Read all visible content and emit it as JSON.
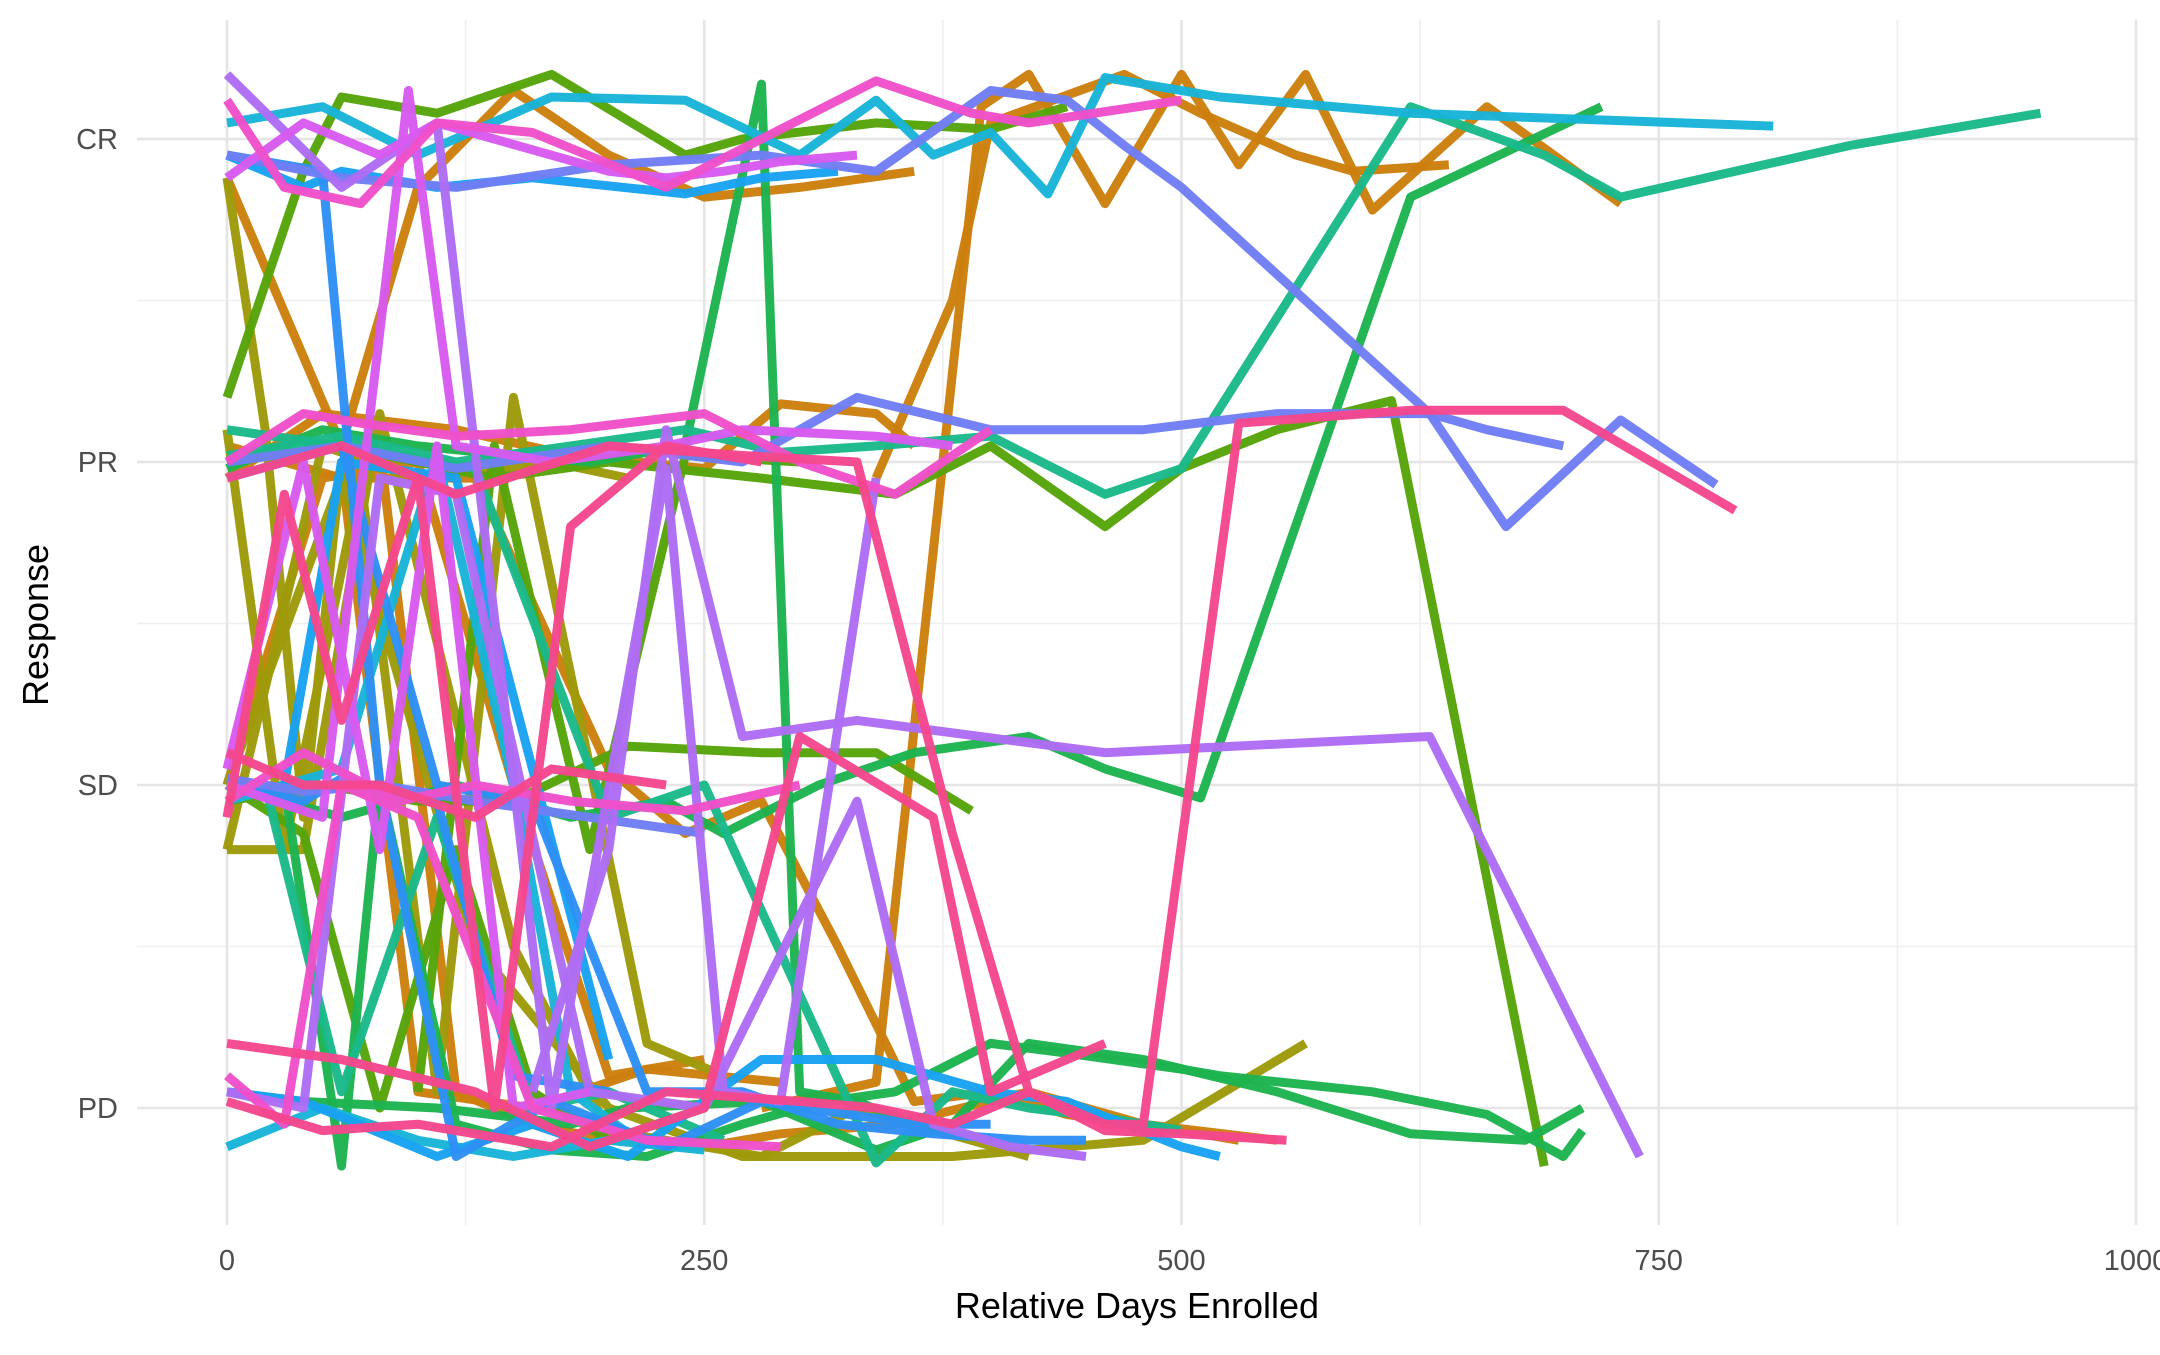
{
  "chart_data": {
    "type": "line",
    "title": "",
    "xlabel": "Relative Days Enrolled",
    "ylabel": "Response",
    "xlim": [
      -15,
      1000
    ],
    "x_ticks": [
      0,
      250,
      500,
      750,
      1000
    ],
    "x_tick_labels": [
      "0",
      "250",
      "500",
      "750",
      "1000"
    ],
    "y_categories": [
      "PD",
      "SD",
      "PR",
      "CR"
    ],
    "ylim": [
      0.6,
      4.3
    ],
    "grid": true,
    "legend": "none",
    "series": [
      {
        "color": "#cc7f0d",
        "x": [
          280,
          340,
          395,
          420,
          460,
          500,
          530,
          565,
          600,
          660,
          730
        ],
        "y": [
          1,
          1.08,
          4.1,
          4.2,
          3.8,
          4.2,
          3.92,
          4.2,
          3.78,
          4.1,
          3.8
        ]
      },
      {
        "color": "#cc7f0d",
        "x": [
          340,
          380,
          400,
          470,
          510,
          560,
          590,
          640
        ],
        "y": [
          2.95,
          3.5,
          4.05,
          4.2,
          4.08,
          3.95,
          3.9,
          3.92
        ]
      },
      {
        "color": "#cc7f0d",
        "x": [
          0,
          60,
          100,
          150,
          200,
          250,
          300,
          360
        ],
        "y": [
          3.88,
          3.05,
          3.85,
          4.15,
          3.95,
          3.82,
          3.85,
          3.9
        ]
      },
      {
        "color": "#cc7f0d",
        "x": [
          0,
          50,
          120,
          180,
          250,
          290,
          340,
          360
        ],
        "y": [
          2.95,
          3.15,
          3.1,
          3.02,
          2.98,
          3.18,
          3.15,
          3.05
        ]
      },
      {
        "color": "#cc7f0d",
        "x": [
          0,
          60,
          130,
          200,
          240,
          280,
          320,
          360,
          400,
          440,
          500,
          530
        ],
        "y": [
          3.05,
          2.95,
          2.95,
          2.05,
          1.85,
          1.95,
          1.5,
          1.02,
          1.05,
          0.98,
          0.93,
          0.9
        ]
      },
      {
        "color": "#cc7f0d",
        "x": [
          80,
          120,
          160,
          200,
          250,
          290,
          350,
          420,
          480,
          550
        ],
        "y": [
          3.05,
          1.05,
          0.95,
          0.9,
          0.88,
          0.92,
          0.95,
          1.05,
          0.95,
          0.9
        ]
      },
      {
        "color": "#cc7f0d",
        "x": [
          60,
          100,
          160,
          220,
          290
        ],
        "y": [
          2.98,
          1.05,
          1.0,
          1.12,
          1.08
        ]
      },
      {
        "color": "#cc7f0d",
        "x": [
          0,
          50,
          100,
          150,
          200,
          250
        ],
        "y": [
          2.0,
          2.95,
          3.0,
          2.0,
          1.1,
          1.15
        ]
      },
      {
        "color": "#9e9a0a",
        "x": [
          0,
          20,
          40,
          60,
          90
        ],
        "y": [
          3.88,
          3.1,
          1.9,
          3.0,
          2.98
        ]
      },
      {
        "color": "#9e9a0a",
        "x": [
          0,
          30,
          70,
          110,
          150,
          220,
          260
        ],
        "y": [
          3.1,
          1.8,
          2.95,
          1.05,
          3.2,
          1.2,
          1.1
        ]
      },
      {
        "color": "#9e9a0a",
        "x": [
          0,
          40,
          80,
          150,
          200,
          280,
          330,
          420
        ],
        "y": [
          1.8,
          1.8,
          3.15,
          1.5,
          0.93,
          0.85,
          1.0,
          0.85
        ]
      },
      {
        "color": "#9e9a0a",
        "x": [
          0,
          60,
          130,
          200,
          270,
          380,
          480,
          565
        ],
        "y": [
          2.0,
          2.95,
          1.5,
          1.0,
          0.85,
          0.85,
          0.9,
          1.2
        ]
      },
      {
        "color": "#9e9a0a",
        "x": [
          0,
          50,
          100,
          170,
          210
        ],
        "y": [
          1.8,
          3.05,
          2.95,
          3.0,
          2.95
        ]
      },
      {
        "color": "#56a40a",
        "x": [
          0,
          40,
          60,
          110,
          170,
          240,
          270,
          340,
          400,
          440
        ],
        "y": [
          3.2,
          3.9,
          4.13,
          4.08,
          4.2,
          3.95,
          4.0,
          4.05,
          4.03,
          4.1
        ]
      },
      {
        "color": "#56a40a",
        "x": [
          0,
          60,
          140,
          200,
          280,
          350,
          400,
          460,
          500,
          550,
          610,
          690
        ],
        "y": [
          3.0,
          3.05,
          2.95,
          3.0,
          2.95,
          2.9,
          3.05,
          2.8,
          2.98,
          3.1,
          3.19,
          0.82
        ]
      },
      {
        "color": "#56a40a",
        "x": [
          0,
          50,
          100,
          150,
          210,
          280,
          340,
          390
        ],
        "y": [
          1.95,
          2.0,
          1.95,
          1.95,
          2.12,
          2.1,
          2.1,
          1.92
        ]
      },
      {
        "color": "#56a40a",
        "x": [
          100,
          140,
          190,
          240,
          300
        ],
        "y": [
          1.05,
          3.05,
          1.8,
          3.02,
          3.0
        ]
      },
      {
        "color": "#56a40a",
        "x": [
          0,
          40,
          80,
          120,
          160,
          200,
          250
        ],
        "y": [
          2.0,
          1.85,
          1.0,
          1.8,
          1.05,
          0.9,
          1.0
        ]
      },
      {
        "color": "#1db34f",
        "x": [
          0,
          50,
          100,
          150,
          190,
          240,
          280,
          300,
          330,
          360
        ],
        "y": [
          2.98,
          3.1,
          3.05,
          3.02,
          3.0,
          3.05,
          4.17,
          1.05,
          1.02,
          0.95
        ]
      },
      {
        "color": "#1db34f",
        "x": [
          290,
          350,
          400,
          440,
          500,
          520,
          600,
          660,
          700,
          710
        ],
        "y": [
          1.0,
          1.05,
          1.2,
          1.17,
          1.12,
          1.1,
          1.05,
          0.98,
          0.85,
          0.93
        ]
      },
      {
        "color": "#1db34f",
        "x": [
          0,
          60,
          120,
          180,
          230,
          260,
          310,
          360,
          420,
          460,
          510,
          620,
          720
        ],
        "y": [
          2.0,
          1.9,
          2.0,
          1.9,
          1.95,
          1.85,
          2.0,
          2.1,
          2.15,
          2.05,
          1.96,
          3.82,
          4.1
        ]
      },
      {
        "color": "#1db34f",
        "x": [
          30,
          60,
          80,
          120,
          170,
          220,
          270,
          300
        ],
        "y": [
          2.0,
          0.82,
          2.0,
          0.95,
          0.87,
          0.85,
          0.95,
          1.0
        ]
      },
      {
        "color": "#1db34f",
        "x": [
          0,
          40,
          110,
          180,
          210,
          280,
          340,
          380,
          420,
          480,
          550,
          620,
          680,
          710
        ],
        "y": [
          1.05,
          1.02,
          1.0,
          0.95,
          1.0,
          1.02,
          0.87,
          0.95,
          1.2,
          1.15,
          1.05,
          0.92,
          0.9,
          1.0
        ]
      },
      {
        "color": "#1ab98a",
        "x": [
          0,
          60,
          120,
          180,
          240,
          290,
          340,
          400,
          460,
          500,
          620,
          690,
          730,
          850,
          950
        ],
        "y": [
          3.02,
          3.08,
          3.0,
          3.05,
          3.1,
          3.03,
          3.05,
          3.08,
          2.9,
          2.98,
          4.1,
          3.95,
          3.82,
          3.98,
          4.08
        ]
      },
      {
        "color": "#1ab98a",
        "x": [
          0,
          60,
          130,
          200,
          250,
          340,
          380,
          420,
          460,
          500
        ],
        "y": [
          3.1,
          3.05,
          2.98,
          1.9,
          2.0,
          0.83,
          1.05,
          1.0,
          0.97,
          0.93
        ]
      },
      {
        "color": "#1ab98a",
        "x": [
          20,
          60,
          110,
          160,
          200,
          260
        ],
        "y": [
          2.0,
          1.05,
          1.9,
          1.0,
          1.05,
          0.9
        ]
      },
      {
        "color": "#18b4d9",
        "x": [
          0,
          50,
          100,
          170,
          240,
          300,
          340,
          370,
          400,
          430,
          460,
          520,
          620,
          810
        ],
        "y": [
          4.05,
          4.1,
          3.95,
          4.13,
          4.12,
          3.95,
          4.12,
          3.95,
          4.02,
          3.83,
          4.19,
          4.13,
          4.08,
          4.04
        ]
      },
      {
        "color": "#18b4d9",
        "x": [
          0,
          50,
          100,
          150,
          200,
          250
        ],
        "y": [
          0.88,
          1.0,
          0.9,
          0.85,
          0.9,
          0.87
        ]
      },
      {
        "color": "#18b4d9",
        "x": [
          0,
          60,
          110,
          150,
          180,
          220
        ],
        "y": [
          1.95,
          2.05,
          3.02,
          2.0,
          1.05,
          0.88
        ]
      },
      {
        "color": "#18a2f2",
        "x": [
          0,
          40,
          60,
          110,
          160,
          240,
          280,
          320
        ],
        "y": [
          3.95,
          3.85,
          3.9,
          3.85,
          3.88,
          3.83,
          3.88,
          3.9
        ]
      },
      {
        "color": "#18a2f2",
        "x": [
          0,
          40,
          110,
          160,
          210,
          280,
          340,
          400,
          440,
          500,
          520
        ],
        "y": [
          1.05,
          1.02,
          0.85,
          0.95,
          0.85,
          1.15,
          1.15,
          1.05,
          1.02,
          0.88,
          0.85
        ]
      },
      {
        "color": "#18a2f2",
        "x": [
          30,
          60,
          120,
          200
        ],
        "y": [
          2.0,
          3.0,
          2.95,
          1.15
        ]
      },
      {
        "color": "#2d8ff5",
        "x": [
          0,
          60,
          110,
          160,
          220,
          270,
          320,
          370,
          420,
          450
        ],
        "y": [
          2.95,
          3.05,
          2.0,
          1.95,
          1.05,
          1.05,
          0.95,
          0.92,
          0.9,
          0.9
        ]
      },
      {
        "color": "#2d8ff5",
        "x": [
          0,
          50,
          80,
          120,
          170,
          230,
          280,
          360,
          400
        ],
        "y": [
          3.95,
          3.9,
          2.0,
          0.85,
          1.02,
          0.88,
          1.02,
          0.95,
          0.95
        ]
      },
      {
        "color": "#2d8ff5",
        "x": [
          0,
          40,
          60,
          110,
          150,
          200
        ],
        "y": [
          2.0,
          1.95,
          2.02,
          1.95,
          1.1,
          1.05
        ]
      },
      {
        "color": "#6f7ef5",
        "x": [
          0,
          60,
          120,
          200,
          280,
          340,
          400,
          440,
          470,
          500,
          630,
          670,
          730,
          780
        ],
        "y": [
          3.95,
          3.88,
          3.85,
          3.92,
          3.95,
          3.9,
          4.15,
          4.12,
          3.98,
          3.85,
          3.15,
          2.8,
          3.13,
          2.93
        ]
      },
      {
        "color": "#6f7ef5",
        "x": [
          0,
          60,
          120,
          200,
          270,
          330,
          400,
          480,
          550,
          630,
          660,
          700
        ],
        "y": [
          3.0,
          3.05,
          2.98,
          3.05,
          3.0,
          3.2,
          3.1,
          3.1,
          3.15,
          3.15,
          3.1,
          3.05
        ]
      },
      {
        "color": "#6f7ef5",
        "x": [
          0,
          40,
          80,
          130,
          190,
          250
        ],
        "y": [
          2.02,
          1.98,
          2.0,
          1.95,
          1.9,
          1.85
        ]
      },
      {
        "color": "#ae6cf5",
        "x": [
          0,
          60,
          110,
          170,
          230,
          260,
          290,
          340
        ],
        "y": [
          4.2,
          3.85,
          4.05,
          1.0,
          2.98,
          1.05,
          1.02,
          2.95
        ]
      },
      {
        "color": "#ae6cf5",
        "x": [
          160,
          200,
          230,
          270,
          330,
          460,
          630,
          740
        ],
        "y": [
          1.05,
          1.8,
          3.1,
          2.15,
          2.2,
          2.1,
          2.15,
          0.85
        ]
      },
      {
        "color": "#ae6cf5",
        "x": [
          0,
          40,
          80,
          120,
          190,
          250,
          330,
          370,
          410,
          450
        ],
        "y": [
          1.05,
          1.0,
          2.95,
          2.9,
          1.05,
          1.0,
          1.95,
          0.95,
          0.88,
          0.85
        ]
      },
      {
        "color": "#d85aef",
        "x": [
          0,
          40,
          80,
          110,
          200,
          230,
          260,
          290,
          330
        ],
        "y": [
          3.88,
          4.05,
          3.95,
          4.05,
          3.9,
          3.88,
          3.9,
          3.93,
          3.95
        ]
      },
      {
        "color": "#d85aef",
        "x": [
          0,
          50,
          95,
          120,
          170,
          230,
          270,
          340,
          380
        ],
        "y": [
          2.0,
          1.9,
          4.15,
          3.05,
          3.0,
          3.05,
          3.1,
          3.08,
          3.05
        ]
      },
      {
        "color": "#d85aef",
        "x": [
          0,
          40,
          80,
          110,
          150,
          190
        ],
        "y": [
          2.05,
          3.0,
          1.8,
          3.05,
          1.0,
          1.05
        ]
      },
      {
        "color": "#ef4fca",
        "x": [
          0,
          30,
          70,
          110,
          160,
          230,
          280,
          340,
          390,
          420,
          500
        ],
        "y": [
          4.12,
          3.85,
          3.8,
          4.05,
          4.02,
          3.85,
          4.0,
          4.18,
          4.08,
          4.05,
          4.12
        ]
      },
      {
        "color": "#ef4fca",
        "x": [
          0,
          40,
          70,
          120,
          180,
          250,
          300,
          350,
          400
        ],
        "y": [
          3.0,
          3.15,
          3.12,
          3.08,
          3.1,
          3.15,
          3.0,
          2.9,
          3.1
        ]
      },
      {
        "color": "#ef4fca",
        "x": [
          0,
          40,
          90,
          130,
          180,
          240,
          300
        ],
        "y": [
          1.95,
          2.1,
          1.95,
          2.0,
          1.95,
          1.92,
          2.0
        ]
      },
      {
        "color": "#ef4fca",
        "x": [
          0,
          30,
          60,
          100,
          160,
          220,
          290
        ],
        "y": [
          1.1,
          0.95,
          2.0,
          1.9,
          1.0,
          0.9,
          0.88
        ]
      },
      {
        "color": "#f5478d",
        "x": [
          0,
          60,
          120,
          200,
          270,
          330,
          380,
          420,
          460,
          480,
          530,
          620,
          700,
          790
        ],
        "y": [
          2.95,
          3.05,
          2.9,
          3.05,
          3.02,
          3.0,
          1.85,
          1.05,
          0.95,
          0.95,
          3.12,
          3.16,
          3.16,
          2.85
        ]
      },
      {
        "color": "#f5478d",
        "x": [
          0,
          50,
          100,
          170,
          230,
          300,
          340,
          380,
          420,
          460,
          500,
          555
        ],
        "y": [
          1.02,
          0.93,
          0.95,
          0.88,
          1.05,
          1.02,
          1.0,
          0.95,
          1.05,
          0.93,
          0.92,
          0.9
        ]
      },
      {
        "color": "#f5478d",
        "x": [
          0,
          60,
          130,
          190,
          250,
          300,
          370,
          400,
          460
        ],
        "y": [
          1.2,
          1.15,
          1.05,
          0.88,
          1.0,
          2.15,
          1.9,
          1.05,
          1.2
        ]
      },
      {
        "color": "#f5478d",
        "x": [
          0,
          40,
          80,
          130,
          170,
          230
        ],
        "y": [
          2.1,
          2.0,
          2.0,
          1.9,
          2.05,
          2.0
        ]
      },
      {
        "color": "#f5478d",
        "x": [
          0,
          30,
          60,
          100,
          140,
          180,
          230,
          280
        ],
        "y": [
          1.9,
          2.9,
          2.2,
          2.95,
          1.0,
          2.8,
          3.05,
          3.0
        ]
      }
    ]
  }
}
